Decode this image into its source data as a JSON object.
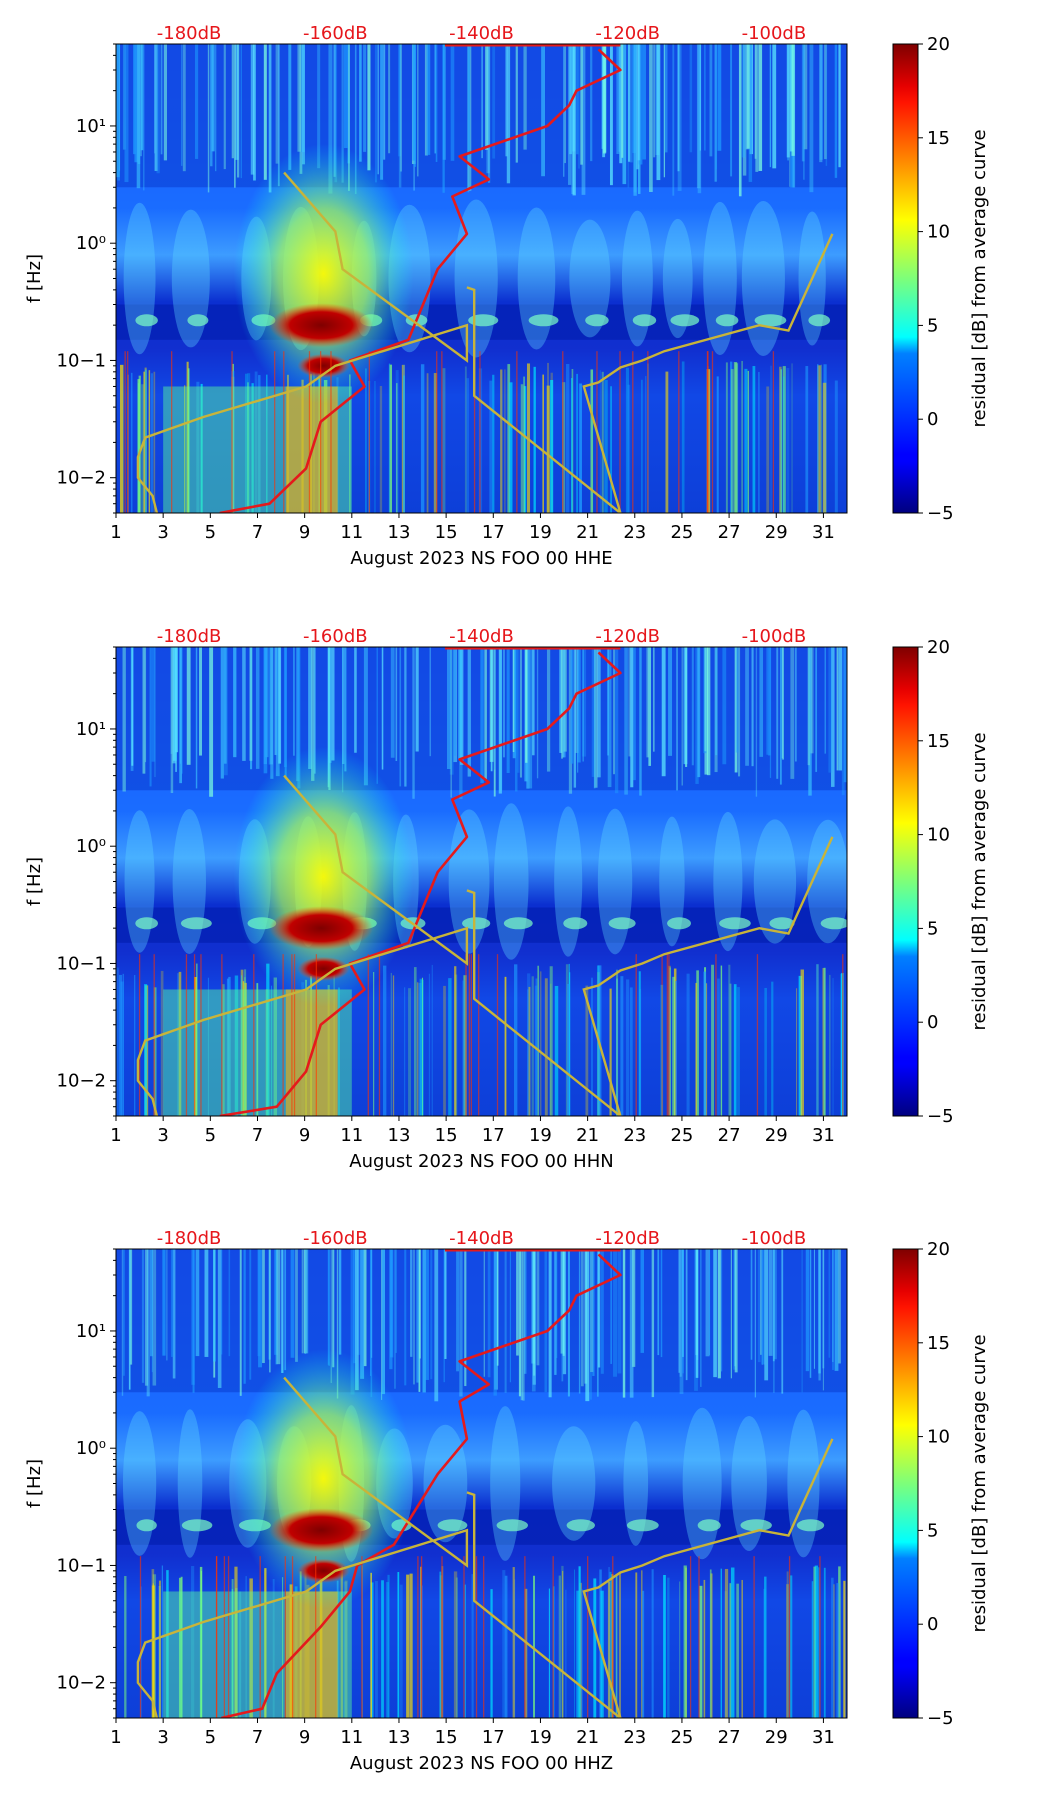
{
  "colors": {
    "median_curve": "#e41a1c",
    "noise_model": "#c8b43a",
    "db_label": "#e6161b"
  },
  "chart_data": [
    {
      "type": "heatmap",
      "panel": "HHE",
      "xlabel": "August 2023 NS FOO 00 HHE",
      "ylabel": "f [Hz]",
      "colorbar_label": "residual [dB] from average curve",
      "x_ticks": [
        "1",
        "3",
        "5",
        "7",
        "9",
        "11",
        "13",
        "15",
        "17",
        "19",
        "21",
        "23",
        "25",
        "27",
        "29",
        "31"
      ],
      "x_tick_values": [
        1,
        3,
        5,
        7,
        9,
        11,
        13,
        15,
        17,
        19,
        21,
        23,
        25,
        27,
        29,
        31
      ],
      "xlim": [
        1,
        32
      ],
      "y_ticks": [
        "10−2",
        "10−1",
        "10⁰",
        "10¹"
      ],
      "y_tick_values": [
        0.01,
        0.1,
        1,
        10
      ],
      "ylim": [
        0.005,
        50
      ],
      "db_ticks": [
        "-180dB",
        "-160dB",
        "-140dB",
        "-120dB",
        "-100dB"
      ],
      "db_tick_values": [
        -180,
        -160,
        -140,
        -120,
        -100
      ],
      "db_range": [
        -190,
        -90
      ],
      "colorbar_ticks": [
        "−5",
        "0",
        "5",
        "10",
        "15",
        "20"
      ],
      "colorbar_tick_values": [
        -5,
        0,
        5,
        10,
        15,
        20
      ],
      "clim": [
        -5,
        20
      ],
      "red_curve": {
        "db": [
          -175.8,
          -169,
          -164,
          -162,
          -156,
          -158,
          -150,
          -146,
          -142,
          -144,
          -139,
          -143,
          -131,
          -128,
          -127,
          -121,
          -124
        ],
        "hz": [
          0.005,
          0.006,
          0.012,
          0.03,
          0.06,
          0.1,
          0.15,
          0.6,
          1.2,
          2.5,
          3.5,
          5.5,
          10,
          15,
          20,
          30,
          45
        ]
      },
      "yellow_curve": {
        "db": [
          -184.4,
          -185,
          -187,
          -187,
          -186,
          -178,
          -164,
          -160,
          -142,
          -142,
          -159,
          -160,
          -167,
          -142,
          -141,
          -141,
          -121,
          -126,
          -124,
          -121,
          -118,
          -115,
          -102,
          -98,
          -92
        ],
        "hz": [
          0.005,
          0.007,
          0.01,
          0.015,
          0.022,
          0.033,
          0.06,
          0.09,
          0.2,
          0.1,
          0.6,
          1.26,
          4,
          0.42,
          0.4,
          0.05,
          0.005,
          0.06,
          0.065,
          0.087,
          0.1,
          0.12,
          0.2,
          0.18,
          1.2
        ]
      }
    },
    {
      "type": "heatmap",
      "panel": "HHN",
      "xlabel": "August 2023 NS FOO 00 HHN",
      "ylabel": "f [Hz]",
      "colorbar_label": "residual [dB] from average curve",
      "x_ticks": [
        "1",
        "3",
        "5",
        "7",
        "9",
        "11",
        "13",
        "15",
        "17",
        "19",
        "21",
        "23",
        "25",
        "27",
        "29",
        "31"
      ],
      "x_tick_values": [
        1,
        3,
        5,
        7,
        9,
        11,
        13,
        15,
        17,
        19,
        21,
        23,
        25,
        27,
        29,
        31
      ],
      "xlim": [
        1,
        32
      ],
      "y_ticks": [
        "10−2",
        "10−1",
        "10⁰",
        "10¹"
      ],
      "y_tick_values": [
        0.01,
        0.1,
        1,
        10
      ],
      "ylim": [
        0.005,
        50
      ],
      "db_ticks": [
        "-180dB",
        "-160dB",
        "-140dB",
        "-120dB",
        "-100dB"
      ],
      "db_tick_values": [
        -180,
        -160,
        -140,
        -120,
        -100
      ],
      "db_range": [
        -190,
        -90
      ],
      "colorbar_ticks": [
        "−5",
        "0",
        "5",
        "10",
        "15",
        "20"
      ],
      "colorbar_tick_values": [
        -5,
        0,
        5,
        10,
        15,
        20
      ],
      "clim": [
        -5,
        20
      ],
      "red_curve": {
        "db": [
          -175.8,
          -168,
          -164,
          -162,
          -156,
          -158,
          -150,
          -146,
          -142,
          -144,
          -139,
          -143,
          -131,
          -128,
          -127,
          -121,
          -124
        ],
        "hz": [
          0.005,
          0.006,
          0.012,
          0.03,
          0.06,
          0.1,
          0.15,
          0.6,
          1.2,
          2.5,
          3.5,
          5.5,
          10,
          15,
          20,
          30,
          45
        ]
      },
      "yellow_curve": {
        "db": [
          -184.4,
          -185,
          -187,
          -187,
          -186,
          -178,
          -164,
          -160,
          -142,
          -142,
          -159,
          -160,
          -167,
          -142,
          -141,
          -141,
          -121,
          -126,
          -124,
          -121,
          -118,
          -115,
          -102,
          -98,
          -92
        ],
        "hz": [
          0.005,
          0.007,
          0.01,
          0.015,
          0.022,
          0.033,
          0.06,
          0.09,
          0.2,
          0.1,
          0.6,
          1.26,
          4,
          0.42,
          0.4,
          0.05,
          0.005,
          0.06,
          0.065,
          0.087,
          0.1,
          0.12,
          0.2,
          0.18,
          1.2
        ]
      }
    },
    {
      "type": "heatmap",
      "panel": "HHZ",
      "xlabel": "August 2023 NS FOO 00 HHZ",
      "ylabel": "f [Hz]",
      "colorbar_label": "residual [dB] from average curve",
      "x_ticks": [
        "1",
        "3",
        "5",
        "7",
        "9",
        "11",
        "13",
        "15",
        "17",
        "19",
        "21",
        "23",
        "25",
        "27",
        "29",
        "31"
      ],
      "x_tick_values": [
        1,
        3,
        5,
        7,
        9,
        11,
        13,
        15,
        17,
        19,
        21,
        23,
        25,
        27,
        29,
        31
      ],
      "xlim": [
        1,
        32
      ],
      "y_ticks": [
        "10−2",
        "10−1",
        "10⁰",
        "10¹"
      ],
      "y_tick_values": [
        0.01,
        0.1,
        1,
        10
      ],
      "ylim": [
        0.005,
        50
      ],
      "db_ticks": [
        "-180dB",
        "-160dB",
        "-140dB",
        "-120dB",
        "-100dB"
      ],
      "db_tick_values": [
        -180,
        -160,
        -140,
        -120,
        -100
      ],
      "db_range": [
        -190,
        -90
      ],
      "colorbar_ticks": [
        "−5",
        "0",
        "5",
        "10",
        "15",
        "20"
      ],
      "colorbar_tick_values": [
        -5,
        0,
        5,
        10,
        15,
        20
      ],
      "clim": [
        -5,
        20
      ],
      "red_curve": {
        "db": [
          -175.6,
          -170,
          -168,
          -162,
          -158,
          -157,
          -152,
          -146,
          -142,
          -143,
          -139,
          -143,
          -131,
          -128,
          -127,
          -121,
          -124
        ],
        "hz": [
          0.005,
          0.006,
          0.012,
          0.03,
          0.06,
          0.1,
          0.15,
          0.6,
          1.2,
          2.5,
          3.5,
          5.5,
          10,
          15,
          20,
          30,
          45
        ]
      },
      "yellow_curve": {
        "db": [
          -184.4,
          -185,
          -187,
          -187,
          -186,
          -178,
          -164,
          -160,
          -142,
          -142,
          -159,
          -160,
          -167,
          -142,
          -141,
          -141,
          -121,
          -126,
          -124,
          -121,
          -118,
          -115,
          -102,
          -98,
          -92
        ],
        "hz": [
          0.005,
          0.007,
          0.01,
          0.015,
          0.022,
          0.033,
          0.06,
          0.09,
          0.2,
          0.1,
          0.6,
          1.26,
          4,
          0.42,
          0.4,
          0.05,
          0.005,
          0.06,
          0.065,
          0.087,
          0.1,
          0.12,
          0.2,
          0.18,
          1.2
        ]
      }
    }
  ]
}
